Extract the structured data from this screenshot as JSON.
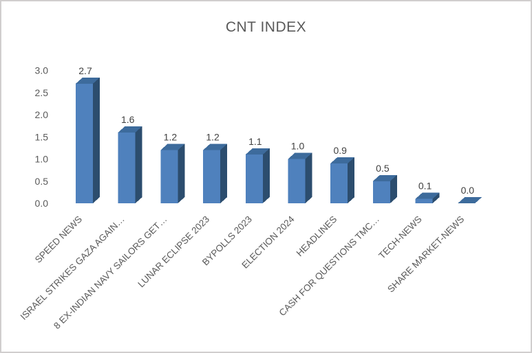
{
  "title": "CNT INDEX",
  "chart_data": {
    "type": "bar",
    "title": "CNT INDEX",
    "categories": [
      "SPEED NEWS",
      "ISRAEL STRIKES GAZA AGAIN…",
      "8 EX-INDIAN NAVY SAILORS GET…",
      "LUNAR ECLIPSE 2023",
      "BYPOLLS 2023",
      "ELECTION 2024",
      "HEADLINES",
      "CASH FOR QUESTIONS TMC…",
      "TECH-NEWS",
      "SHARE MARKET-NEWS"
    ],
    "values": [
      2.7,
      1.6,
      1.2,
      1.2,
      1.1,
      1.0,
      0.9,
      0.5,
      0.1,
      0.0
    ],
    "value_labels": [
      "2.7",
      "1.6",
      "1.2",
      "1.2",
      "1.1",
      "1.0",
      "0.9",
      "0.5",
      "0.1",
      "0.0"
    ],
    "y_ticks": [
      "0.0",
      "0.5",
      "1.0",
      "1.5",
      "2.0",
      "2.5",
      "3.0"
    ],
    "ylim": [
      0.0,
      3.0
    ],
    "xlabel": "",
    "ylabel": "",
    "grid": false,
    "legend": "none",
    "bar_style": "3d-box",
    "colors": {
      "bar_front": "#4f81bd",
      "bar_side": "#2c4d6e",
      "bar_top": "#3d6b9c",
      "axis_text": "#595959",
      "value_label_text": "#404040",
      "title_text": "#595959",
      "frame_border": "#d0cece"
    }
  }
}
